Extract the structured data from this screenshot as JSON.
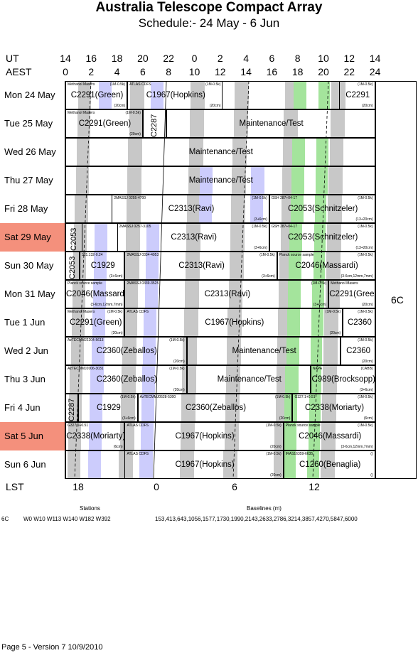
{
  "title": "Australia Telescope Compact Array",
  "subtitle": "Schedule:- 24 May - 6  Jun",
  "header": {
    "ut_label": "UT",
    "aest_label": "AEST",
    "ut_ticks": [
      "14",
      "16",
      "18",
      "20",
      "22",
      "0",
      "2",
      "4",
      "6",
      "8",
      "10",
      "12",
      "14"
    ],
    "aest_ticks": [
      "0",
      "2",
      "4",
      "6",
      "8",
      "10",
      "12",
      "14",
      "16",
      "18",
      "20",
      "22",
      "24"
    ]
  },
  "config": "6C",
  "lst": {
    "label": "LST",
    "ticks": [
      "18",
      "0",
      "6",
      "12"
    ]
  },
  "days": [
    "Mon 24 May",
    "Tue  25 May",
    "Wed 26 May",
    "Thu  27 May",
    "Fri    28 May",
    "Sat   29 May",
    "Sun  30 May",
    "Mon 31 May",
    "Tue    1  Jun",
    "Wed   2  Jun",
    "Thu    3  Jun",
    "Fri     4  Jun",
    "Sat     5  Jun",
    "Sun    6  Jun"
  ],
  "colors": {
    "weekend": "#f4907c",
    "grey": "#c8c8c8",
    "green": "#a4e49c",
    "blue": "#ccccfc"
  },
  "blocks": [
    {
      "row": 0,
      "items": [
        {
          "name": "C2291(Green)",
          "sub": "Methanol Masers",
          "note": "(1M-0.5k)",
          "foot": "(20cm)"
        },
        {
          "name": "C1967(Hopkins)",
          "sub": "ATLAS CDFS",
          "note": "(1M-0.5k)",
          "foot": "(20cm)"
        },
        {
          "name": "C2291",
          "sub": "",
          "note": "(1M-0.5k)",
          "foot": "(20cm)"
        }
      ]
    },
    {
      "row": 1,
      "items": [
        {
          "name": "C2291(Green)",
          "sub": "Methanol Masers",
          "note": "(1M-0.5k)",
          "foot": "(20cm)"
        },
        {
          "name": "C2287",
          "sub": "",
          "note": "",
          "foot": ""
        },
        {
          "name": "Maintenance/Test",
          "sub": "",
          "note": "",
          "foot": ""
        }
      ]
    },
    {
      "row": 2,
      "items": [
        {
          "name": "Maintenance/Test",
          "sub": "",
          "note": "",
          "foot": ""
        }
      ]
    },
    {
      "row": 3,
      "items": [
        {
          "name": "Maintenance/Test",
          "sub": "",
          "note": "",
          "foot": ""
        }
      ]
    },
    {
      "row": 4,
      "items": [
        {
          "name": "C2313(Ravi)",
          "sub": "2MASSJ 0255-4700",
          "note": "(1M-0.5k)",
          "foot": "(3+6cm)"
        },
        {
          "name": "C2053(Schnitzeler)",
          "sub": "GSH 287+04-17",
          "note": "(1M-0.5k)",
          "foot": "(13+20cm)"
        }
      ]
    },
    {
      "row": 5,
      "items": [
        {
          "name": "C2053",
          "sub": "",
          "note": "",
          "foot": ""
        },
        {
          "name": "C2313(Ravi)",
          "sub": "2MASSJ 0257-3105",
          "note": "(1M-0.5k)",
          "foot": "(3+6cm)"
        },
        {
          "name": "C2053(Schnitzeler)",
          "sub": "GSH 287+04-17",
          "note": "(1M-0.5k)",
          "foot": "(13+20cm)"
        }
      ]
    },
    {
      "row": 6,
      "items": [
        {
          "name": "C2053",
          "sub": "",
          "note": "",
          "foot": ""
        },
        {
          "name": "C1929",
          "sub": "321.132-0.24",
          "note": "",
          "foot": "(3+6cm)"
        },
        {
          "name": "C2313(Ravi)",
          "sub": "2MASSJ 0334-4953",
          "note": "(1M-0.5k)",
          "foot": "(3+6cm)"
        },
        {
          "name": "C2046(Massardi)",
          "sub": "Planck source sample",
          "note": "(1M-0.5k)",
          "foot": "(3-6cm,12mm,7mm)"
        }
      ]
    },
    {
      "row": 7,
      "items": [
        {
          "name": "C2046(Massardi)",
          "sub": "Planck source sample",
          "note": "",
          "foot": "(3-6cm,12mm,7mm)"
        },
        {
          "name": "C2313(Ravi)",
          "sub": "2MASSJ 0339-3525",
          "note": "(1M-0.5k)",
          "foot": "(3+6cm)"
        },
        {
          "name": "C2291(Green)",
          "sub": "Methanol Masers",
          "note": "",
          "foot": "(20cm)"
        }
      ]
    },
    {
      "row": 8,
      "items": [
        {
          "name": "C2291(Green)",
          "sub": "Methanol Masers",
          "note": "(1M-0.5k)",
          "foot": "(20cm)"
        },
        {
          "name": "C1967(Hopkins)",
          "sub": "ATLAS CDFS",
          "note": "(1M-0.5k)",
          "foot": "(20cm)"
        },
        {
          "name": "C2360",
          "sub": "",
          "note": "(1M-0.5k)",
          "foot": ""
        }
      ]
    },
    {
      "row": 9,
      "items": [
        {
          "name": "C2360(Zeballos)",
          "sub": "AzTECMMJ2204-5613",
          "note": "(1M-0.5k)",
          "foot": "(20cm)"
        },
        {
          "name": "Maintenance/Test",
          "sub": "",
          "note": "",
          "foot": ""
        },
        {
          "name": "C2360",
          "sub": "",
          "note": "(1M-0.5k)",
          "foot": "(20cm)"
        }
      ]
    },
    {
      "row": 10,
      "items": [
        {
          "name": "C2360(Zeballos)",
          "sub": "AzTECMMJ2006-3031",
          "note": "(1M-0.5k)",
          "foot": "(20cm)"
        },
        {
          "name": "Maintenance/Test",
          "sub": "",
          "note": "",
          "foot": ""
        },
        {
          "name": "C989(Brocksopp)",
          "sub": "NAPA",
          "note": "(CABB)",
          "foot": "(3+6cm)"
        }
      ]
    },
    {
      "row": 11,
      "items": [
        {
          "name": "C2287",
          "sub": "",
          "note": "",
          "foot": ""
        },
        {
          "name": "C1929",
          "sub": "",
          "note": "(1M-0.5k)",
          "foot": "(3+6cm)"
        },
        {
          "name": "C2360(Zeballos)",
          "sub": "AzTECMMJ0528-5300",
          "note": "(1M-0.5k)",
          "foot": "(20cm)"
        },
        {
          "name": "C2338(Moriarty)",
          "sub": "G327.1+0.51",
          "note": "(1M-0.5k)",
          "foot": "(6cm)"
        }
      ]
    },
    {
      "row": 12,
      "items": [
        {
          "name": "C2338(Moriarty)",
          "sub": "G327.1+0.51",
          "note": "",
          "foot": "(6cm)"
        },
        {
          "name": "C1967(Hopkins)",
          "sub": "ATLAS CDFS",
          "note": "(1M-0.5k)",
          "foot": "(20cm)"
        },
        {
          "name": "C2046(Massardi)",
          "sub": "Planck source sample",
          "note": "(1M-0.5k)",
          "foot": "(3-6cm,12mm,7mm)"
        }
      ]
    },
    {
      "row": 13,
      "items": [
        {
          "name": "C1967(Hopkins)",
          "sub": "ATLAS CDFS",
          "note": "(1M-0.5k)",
          "foot": "(20cm)"
        },
        {
          "name": "C1260(Benaglia)",
          "sub": "IRAS16359-6635",
          "note": "()",
          "foot": "()"
        }
      ]
    }
  ],
  "stations": {
    "label": "Stations",
    "config": "6C",
    "list": "W0 W10 W113 W140 W182 W392"
  },
  "baselines": {
    "label": "Baselines (m)",
    "list": "153,413,643,1056,1577,1730,1990,2143,2633,2786,3214,3857,4270,5847,6000"
  },
  "footer": "Page 5 - Version 7  10/9/2010"
}
